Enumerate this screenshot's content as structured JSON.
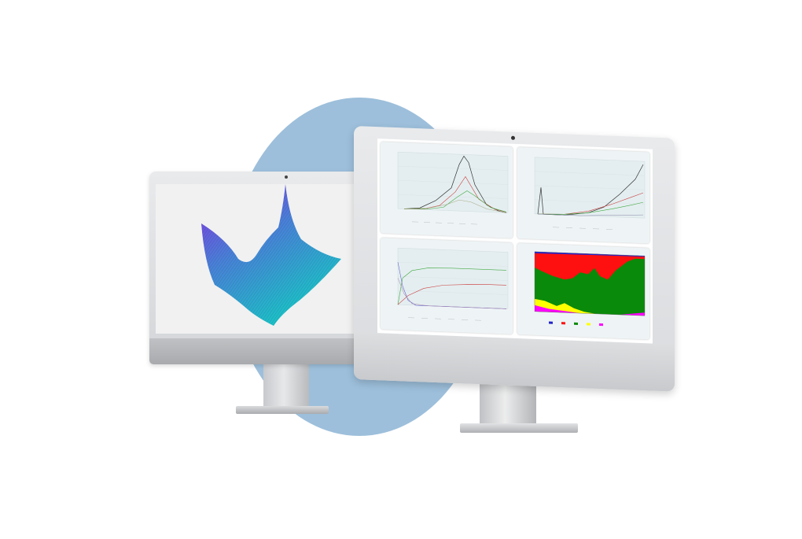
{
  "colors": {
    "background": "#ffffff",
    "circle": "#9dbfdb",
    "surface_start": "#8a2be2",
    "surface_end": "#19c6c6",
    "area_red": "#ff1010",
    "area_green": "#0a8a0a",
    "area_yellow": "#ffff00",
    "area_magenta": "#ff00ff",
    "area_blue": "#2222cc"
  },
  "left_monitor": {
    "screen_content": "3d-surface-plot"
  },
  "right_monitor": {
    "panels": [
      {
        "name": "line-chart-top-left",
        "type": "line"
      },
      {
        "name": "line-chart-top-right",
        "type": "line"
      },
      {
        "name": "line-chart-bottom-left",
        "type": "line"
      },
      {
        "name": "stacked-area-chart-bottom-right",
        "type": "area"
      }
    ]
  }
}
